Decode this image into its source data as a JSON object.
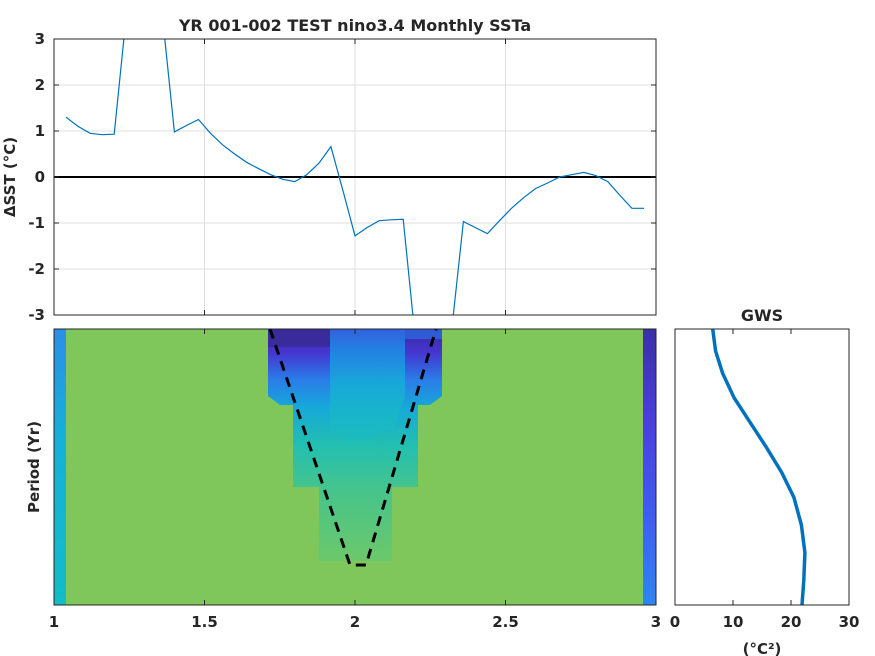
{
  "chart_data": [
    {
      "type": "line",
      "title": "YR 001-002 TEST nino3.4 Monthly SSTa",
      "ylabel": "ΔSST (°C)",
      "xlim": [
        1,
        3
      ],
      "ylim": [
        -3,
        3
      ],
      "yticks": [
        "-3",
        "-2",
        "-1",
        "0",
        "1",
        "2",
        "3"
      ],
      "grid": true,
      "colors": {
        "series": "#0072bd",
        "zero_line": "#000000"
      },
      "series": [
        {
          "x": [
            1.04,
            1.08,
            1.12,
            1.16,
            1.2,
            1.24,
            1.28,
            1.32,
            1.36,
            1.4,
            1.44,
            1.48,
            1.52,
            1.56,
            1.6,
            1.64,
            1.68,
            1.72,
            1.76,
            1.8,
            1.84,
            1.88,
            1.92,
            1.96,
            2.0,
            2.04,
            2.08,
            2.12,
            2.16,
            2.2,
            2.24,
            2.28,
            2.32,
            2.36,
            2.4,
            2.44,
            2.48,
            2.52,
            2.56,
            2.6,
            2.64,
            2.68,
            2.72,
            2.76,
            2.8,
            2.84,
            2.88,
            2.92,
            2.96
          ],
          "y": [
            1.3,
            1.1,
            0.95,
            0.92,
            0.93,
            3.5,
            4.5,
            4.0,
            3.5,
            0.98,
            1.12,
            1.25,
            0.95,
            0.7,
            0.5,
            0.32,
            0.18,
            0.05,
            -0.05,
            -0.1,
            0.05,
            0.3,
            0.66,
            -0.3,
            -1.28,
            -1.1,
            -0.95,
            -0.93,
            -0.92,
            -3.5,
            -4.5,
            -4.5,
            -3.4,
            -0.97,
            -1.1,
            -1.23,
            -0.95,
            -0.68,
            -0.45,
            -0.25,
            -0.13,
            0.0,
            0.05,
            0.1,
            0.03,
            -0.1,
            -0.4,
            -0.68,
            -0.68
          ]
        }
      ]
    },
    {
      "type": "heatmap",
      "ylabel": "Period (Yr)",
      "xticks": [
        "1",
        "1.5",
        "2",
        "2.5",
        "3"
      ],
      "xlim": [
        1,
        3
      ],
      "colors": {
        "background": "#7fc75a",
        "cone_of_influence": "#000000"
      }
    },
    {
      "type": "line",
      "title": "GWS",
      "xlabel": "(°C²)",
      "xlim": [
        0,
        30
      ],
      "xticks": [
        "0",
        "10",
        "20",
        "30"
      ],
      "colors": {
        "series": "#0072bd"
      },
      "series": [
        {
          "x": [
            6.5,
            7.0,
            8.2,
            10.2,
            13.0,
            15.8,
            18.4,
            20.5,
            21.8,
            22.4,
            22.2,
            21.9
          ],
          "y": [
            0.0,
            0.08,
            0.16,
            0.25,
            0.34,
            0.43,
            0.52,
            0.61,
            0.71,
            0.81,
            0.91,
            1.0
          ]
        }
      ]
    }
  ]
}
